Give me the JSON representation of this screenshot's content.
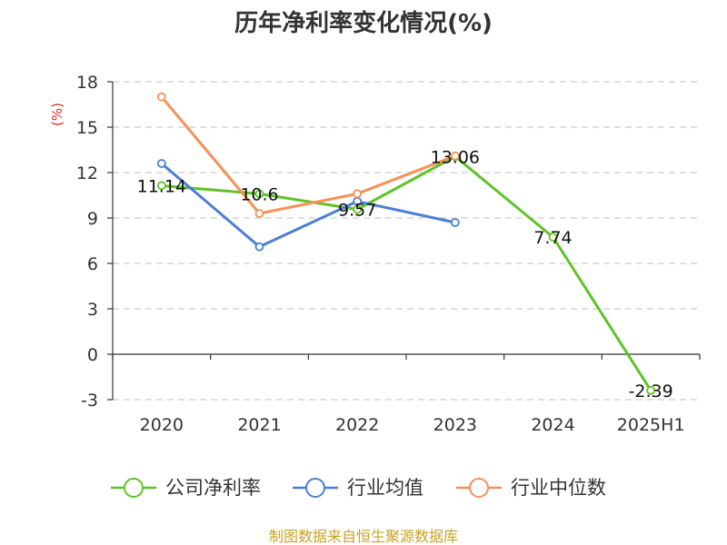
{
  "chart_data": {
    "type": "line",
    "title": "历年净利率变化情况(%)",
    "ylabel": "(%)",
    "categories": [
      "2020",
      "2021",
      "2022",
      "2023",
      "2024",
      "2025H1"
    ],
    "yticks": [
      18,
      15,
      12,
      9,
      6,
      3,
      0,
      -3
    ],
    "ylim": [
      -3,
      18
    ],
    "grid": true,
    "legend_position": "bottom",
    "series": [
      {
        "name": "公司净利率",
        "color": "#5fc327",
        "values": [
          11.14,
          10.6,
          9.57,
          13.06,
          7.74,
          -2.39
        ],
        "labels": [
          "11.14",
          "10.6",
          "9.57",
          "13.06",
          "7.74",
          "-2.39"
        ]
      },
      {
        "name": "行业均值",
        "color": "#4a7fd6",
        "values": [
          12.6,
          7.1,
          10.1,
          8.7,
          null,
          null
        ]
      },
      {
        "name": "行业中位数",
        "color": "#f59158",
        "values": [
          17.0,
          9.3,
          10.6,
          13.1,
          null,
          null
        ]
      }
    ]
  },
  "source": "制图数据来自恒生聚源数据库"
}
